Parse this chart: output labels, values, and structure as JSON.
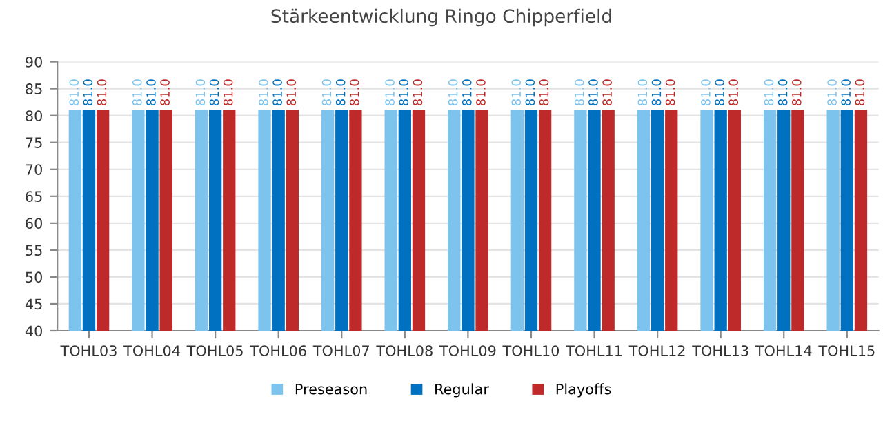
{
  "chart_data": {
    "type": "bar",
    "title": "Stärkeentwicklung Ringo Chipperfield",
    "categories": [
      "TOHL03",
      "TOHL04",
      "TOHL05",
      "TOHL06",
      "TOHL07",
      "TOHL08",
      "TOHL09",
      "TOHL10",
      "TOHL11",
      "TOHL12",
      "TOHL13",
      "TOHL14",
      "TOHL15"
    ],
    "series": [
      {
        "name": "Preseason",
        "color": "#7cc3ee",
        "values": [
          81,
          81,
          81,
          81,
          81,
          81,
          81,
          81,
          81,
          81,
          81,
          81,
          81
        ],
        "value_labels": [
          "81.0",
          "81.0",
          "81.0",
          "81.0",
          "81.0",
          "81.0",
          "81.0",
          "81.0",
          "81.0",
          "81.0",
          "81.0",
          "81.0",
          "81.0"
        ]
      },
      {
        "name": "Regular",
        "color": "#0070c0",
        "values": [
          81,
          81,
          81,
          81,
          81,
          81,
          81,
          81,
          81,
          81,
          81,
          81,
          81
        ],
        "value_labels": [
          "81.0",
          "81.0",
          "81.0",
          "81.0",
          "81.0",
          "81.0",
          "81.0",
          "81.0",
          "81.0",
          "81.0",
          "81.0",
          "81.0",
          "81.0"
        ]
      },
      {
        "name": "Playoffs",
        "color": "#be2a2a",
        "values": [
          81,
          81,
          81,
          81,
          81,
          81,
          81,
          81,
          81,
          81,
          81,
          81,
          81
        ],
        "value_labels": [
          "81.0",
          "81.0",
          "81.0",
          "81.0",
          "81.0",
          "81.0",
          "81.0",
          "81.0",
          "81.0",
          "81.0",
          "81.0",
          "81.0",
          "81.0"
        ]
      }
    ],
    "ylim": [
      40,
      90
    ],
    "yticks": [
      40,
      45,
      50,
      55,
      60,
      65,
      70,
      75,
      80,
      85,
      90
    ],
    "grid": "y",
    "legend": "bottom"
  }
}
